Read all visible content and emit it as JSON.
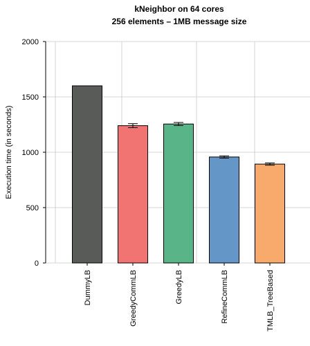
{
  "chart_data": {
    "type": "bar",
    "title": "kNeighbor on 64 cores",
    "subtitle": "256 elements – 1MB message size",
    "xlabel": "",
    "ylabel": "Execution time (in seconds)",
    "ylim": [
      0,
      2000
    ],
    "yticks": [
      0,
      500,
      1000,
      1500,
      2000
    ],
    "grid": true,
    "categories": [
      "DummyLB",
      "GreedyCommLB",
      "GreedyLB",
      "RefineCommLB",
      "TMLB_TreeBased"
    ],
    "values": [
      1600,
      1240,
      1255,
      957,
      893
    ],
    "errors": [
      0,
      18,
      14,
      10,
      10
    ],
    "colors": [
      "#595b59",
      "#f17472",
      "#59b587",
      "#6496c8",
      "#f7aa6c"
    ]
  }
}
